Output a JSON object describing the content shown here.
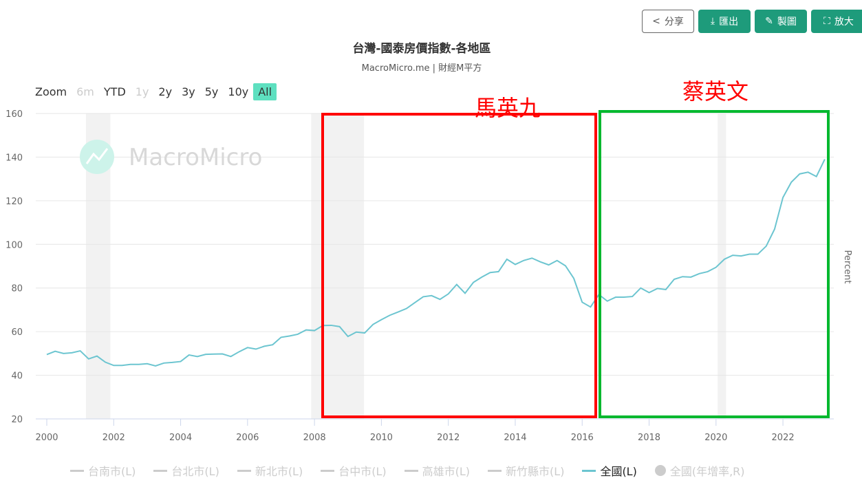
{
  "toolbar": {
    "share": "分享",
    "export": "匯出",
    "make_chart": "製圖",
    "enlarge": "放大"
  },
  "header": {
    "title": "台灣-國泰房價指數-各地區",
    "subtitle": "MacroMicro.me | 財經M平方"
  },
  "zoom": {
    "label": "Zoom",
    "options": [
      {
        "label": "6m",
        "disabled": true
      },
      {
        "label": "YTD"
      },
      {
        "label": "1y",
        "disabled": true
      },
      {
        "label": "2y"
      },
      {
        "label": "3y"
      },
      {
        "label": "5y"
      },
      {
        "label": "10y"
      },
      {
        "label": "All",
        "selected": true
      }
    ]
  },
  "watermark": "MacroMicro",
  "annotations": [
    {
      "label": "馬英九",
      "color": "#ff0000",
      "box_color": "#ff0000",
      "from": 2008.3,
      "to": 2016.45
    },
    {
      "label": "蔡英文",
      "color": "#ff0000",
      "box_color": "#00b82e",
      "from": 2016.55,
      "to": 2023.4
    }
  ],
  "legend": [
    {
      "label": "台南市(L)"
    },
    {
      "label": "台北市(L)"
    },
    {
      "label": "新北市(L)"
    },
    {
      "label": "台中市(L)"
    },
    {
      "label": "高雄市(L)"
    },
    {
      "label": "新竹縣市(L)"
    },
    {
      "label": "全國(L)",
      "active": true
    },
    {
      "label": "全國(年增率,R)",
      "marker": "circle"
    }
  ],
  "chart_data": {
    "type": "line",
    "title": "台灣-國泰房價指數-各地區",
    "ylabel_right": "Percent",
    "ylim": [
      20,
      160
    ],
    "yticks": [
      20,
      40,
      60,
      80,
      100,
      120,
      140,
      160
    ],
    "xlim": [
      1999.7,
      2023.4
    ],
    "xticks": [
      2000,
      2002,
      2004,
      2006,
      2008,
      2010,
      2012,
      2014,
      2016,
      2018,
      2020,
      2022
    ],
    "grid": true,
    "legend_placement": "bottom",
    "line_color": "#6cc5d0",
    "shaded_periods": [
      [
        2001.17,
        2001.9
      ],
      [
        2007.9,
        2009.48
      ],
      [
        2020.05,
        2020.3
      ]
    ],
    "series": [
      {
        "name": "全國(L)",
        "start": 2000.0,
        "step": 0.25,
        "values": [
          49.5,
          51,
          50,
          50.3,
          51.2,
          47.5,
          48.8,
          46,
          44.5,
          44.5,
          45,
          45,
          45.3,
          44.3,
          45.6,
          45.9,
          46.3,
          49.3,
          48.6,
          49.6,
          49.7,
          49.8,
          48.6,
          50.8,
          52.7,
          52,
          53.3,
          54,
          57.4,
          58,
          58.8,
          60.8,
          60.5,
          62.8,
          62.9,
          62.3,
          57.8,
          59.8,
          59.4,
          63.3,
          65.5,
          67.5,
          69,
          70.6,
          73.3,
          76,
          76.5,
          74.8,
          77.3,
          81.6,
          77.6,
          82.6,
          85,
          87.1,
          87.5,
          93.2,
          90.8,
          92.6,
          93.7,
          92,
          90.6,
          92.6,
          90.2,
          84.4,
          73.5,
          71.3,
          77,
          74,
          75.8,
          75.8,
          76.1,
          80,
          77.9,
          79.8,
          79.3,
          84,
          85.2,
          85,
          86.6,
          87.5,
          89.5,
          93.2,
          95,
          94.7,
          95.5,
          95.5,
          99.2,
          107,
          121.5,
          128.5,
          132.3,
          133.1,
          131.1,
          139
        ]
      }
    ]
  }
}
